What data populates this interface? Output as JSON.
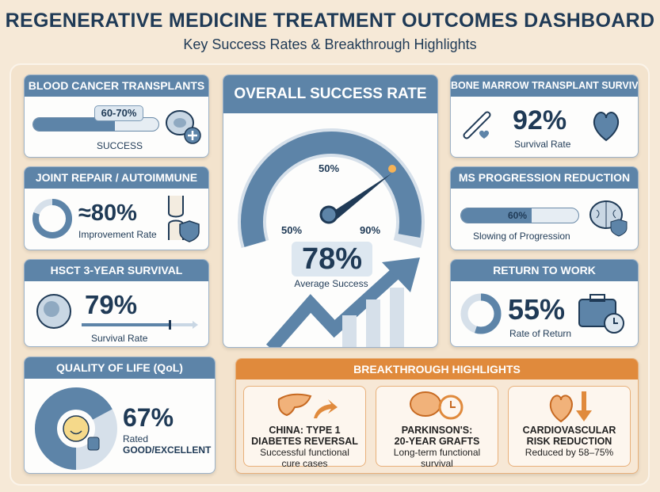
{
  "header": {
    "title": "REGENERATIVE MEDICINE TREATMENT OUTCOMES DASHBOARD",
    "subtitle": "Key Success Rates & Breakthrough Highlights"
  },
  "colors": {
    "primary": "#5d84a8",
    "dark": "#1f3a56",
    "accent": "#e08a3c",
    "background": "#f6e9d7"
  },
  "cards": {
    "blood": {
      "title": "BLOOD CANCER TRANSPLANTS",
      "value": "60-70%",
      "label": "SUCCESS",
      "fill_percent": 65,
      "icon": "blood-cell-plus-icon"
    },
    "joint": {
      "title": "JOINT REPAIR / AUTOIMMUNE",
      "value": "≈80%",
      "label": "Improvement Rate",
      "fill_percent": 80,
      "icon": "knee-joint-shield-icon"
    },
    "hsct": {
      "title": "HSCT 3-YEAR SURVIVAL",
      "value": "79%",
      "label": "Survival Rate",
      "fill_percent": 79,
      "icon": "stem-cell-icon"
    },
    "qol": {
      "title": "QUALITY OF LIFE (QoL)",
      "value": "67%",
      "label1": "Rated",
      "label2": "GOOD/EXCELLENT",
      "fill_percent": 67,
      "icon": "smiley-thumbs-up-icon"
    },
    "overall": {
      "title": "OVERALL SUCCESS RATE",
      "value": "78%",
      "label": "Average Success",
      "gauge_labels": [
        "50%",
        "50%",
        "90%"
      ],
      "gauge_value": 78
    },
    "marrow": {
      "title": "BONE MARROW TRANSPLANT SURVIVAL",
      "value": "92%",
      "label": "Survival Rate",
      "icon": "bone-heart-icon"
    },
    "ms": {
      "title": "MS PROGRESSION REDUCTION",
      "value": "60%",
      "label": "Slowing of Progression",
      "fill_percent": 60,
      "icon": "brain-shield-icon"
    },
    "work": {
      "title": "RETURN TO WORK",
      "value": "55%",
      "label": "Rate of Return",
      "fill_percent": 55,
      "icon": "briefcase-clock-icon"
    }
  },
  "breakthrough": {
    "title": "BREAKTHROUGH HIGHLIGHTS",
    "items": [
      {
        "title1": "CHINA: TYPE 1",
        "title2": "DIABETES REVERSAL",
        "desc1": "Successful functional",
        "desc2": "cure cases",
        "icon": "pancreas-arrow-icon"
      },
      {
        "title1": "PARKINSON'S:",
        "title2": "20-YEAR GRAFTS",
        "desc1": "Long-term functional survival",
        "desc2": "",
        "icon": "brain-clock-icon"
      },
      {
        "title1": "CARDIOVASCULAR",
        "title2": "RISK REDUCTION",
        "desc1": "Reduced by 58–75%",
        "desc2": "",
        "icon": "heart-down-arrow-icon"
      }
    ]
  }
}
